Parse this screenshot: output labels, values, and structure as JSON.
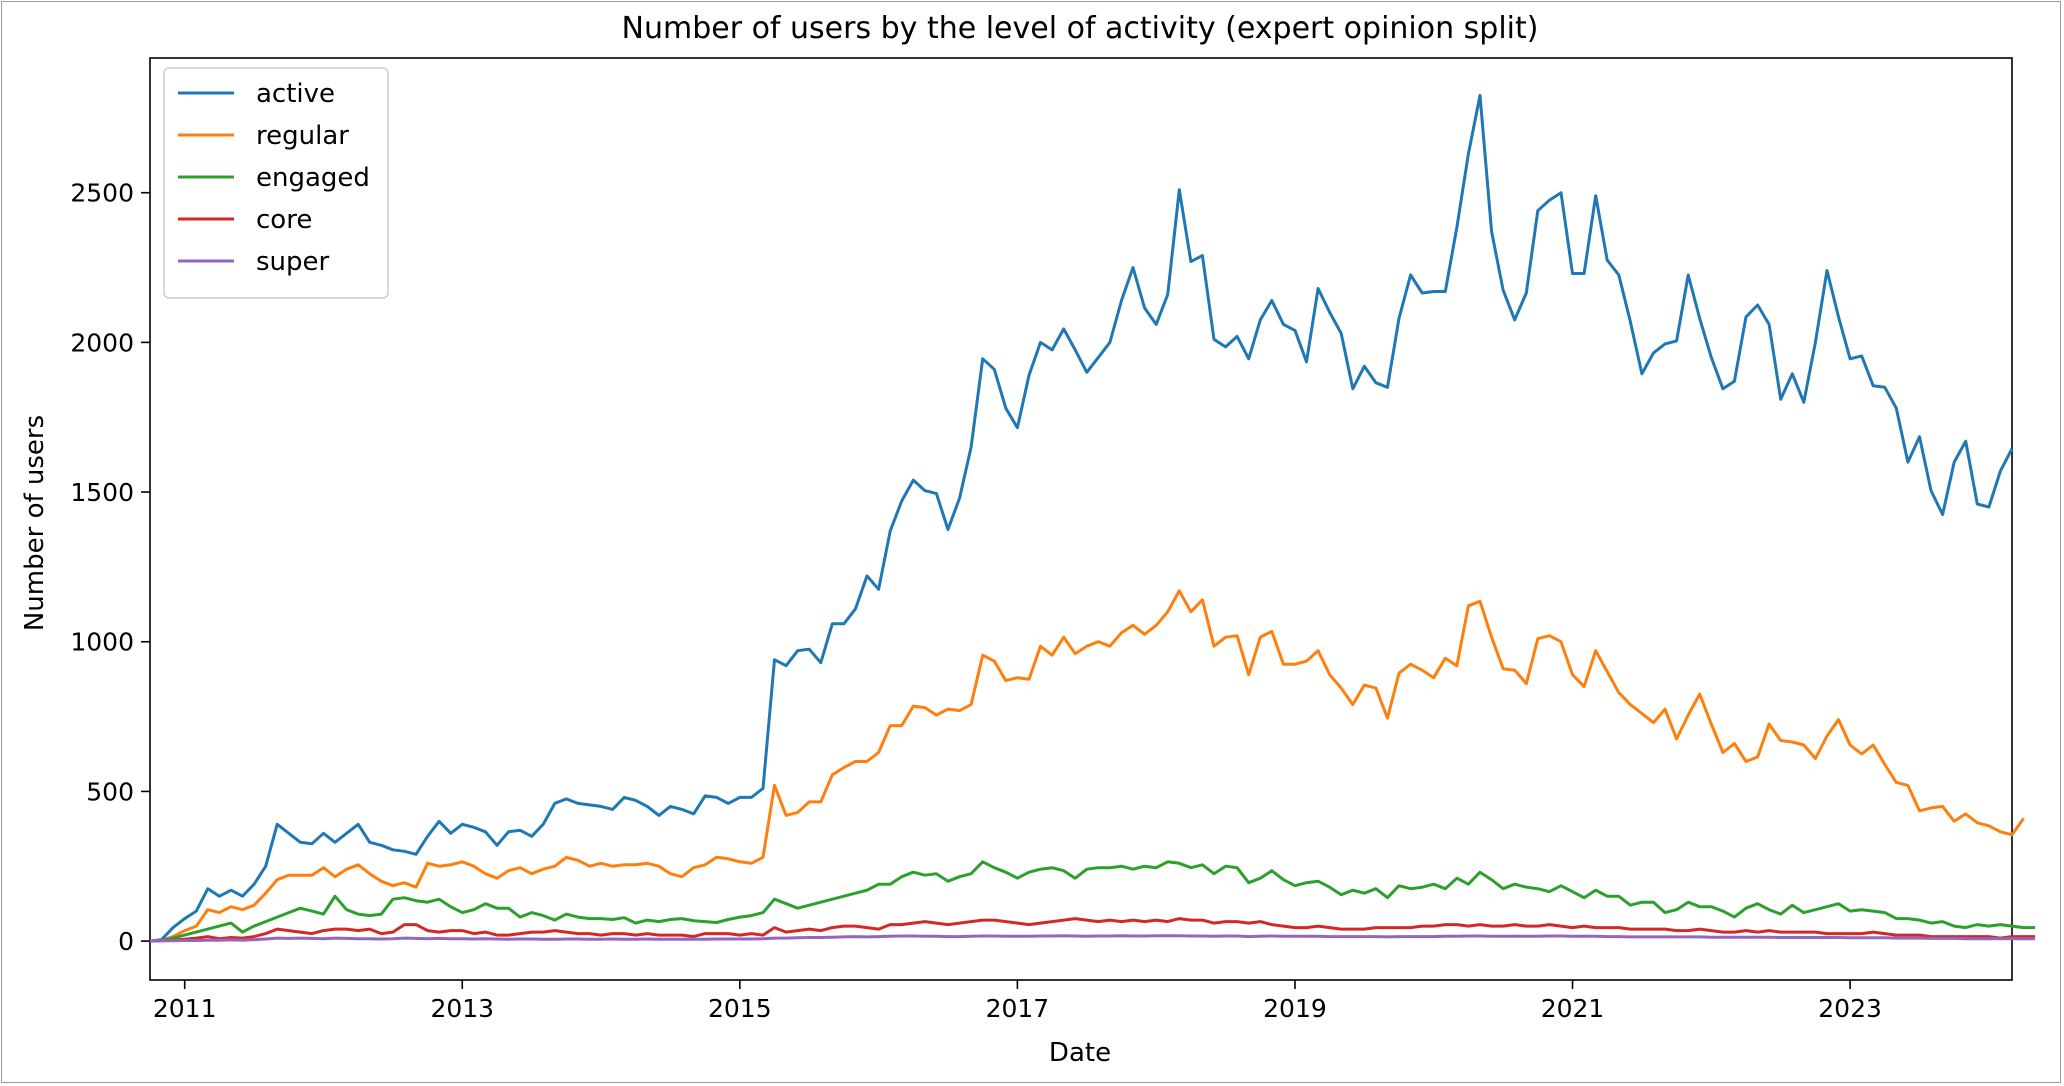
{
  "chart_data": {
    "type": "line",
    "title": "Number of users by the level of activity (expert opinion split)",
    "xlabel": "Date",
    "ylabel": "Number of users",
    "xlim": [
      "2010-10",
      "2024-03"
    ],
    "ylim": [
      -130,
      2950
    ],
    "x_ticks": [
      "2011",
      "2013",
      "2015",
      "2017",
      "2019",
      "2021",
      "2023"
    ],
    "y_ticks": [
      0,
      500,
      1000,
      1500,
      2000,
      2500
    ],
    "grid": false,
    "legend": "top-left",
    "x_start": "2010-10",
    "series": [
      {
        "name": "active",
        "color": "#1f77b4",
        "values": [
          0,
          5,
          45,
          75,
          100,
          175,
          150,
          170,
          150,
          190,
          250,
          390,
          360,
          330,
          325,
          360,
          330,
          360,
          390,
          330,
          320,
          305,
          300,
          290,
          350,
          400,
          360,
          390,
          380,
          365,
          320,
          365,
          370,
          350,
          390,
          460,
          475,
          460,
          455,
          450,
          440,
          480,
          470,
          450,
          420,
          450,
          440,
          425,
          485,
          480,
          460,
          480,
          480,
          510,
          940,
          920,
          970,
          975,
          930,
          1060,
          1060,
          1110,
          1220,
          1175,
          1370,
          1470,
          1540,
          1505,
          1495,
          1375,
          1480,
          1650,
          1945,
          1910,
          1780,
          1715,
          1890,
          2000,
          1975,
          2045,
          1975,
          1900,
          1950,
          2000,
          2140,
          2250,
          2115,
          2060,
          2160,
          2510,
          2270,
          2290,
          2010,
          1985,
          2020,
          1945,
          2075,
          2140,
          2060,
          2040,
          1935,
          2180,
          2100,
          2030,
          1845,
          1920,
          1865,
          1850,
          2080,
          2225,
          2165,
          2170,
          2170,
          2385,
          2630,
          2825,
          2370,
          2175,
          2075,
          2165,
          2440,
          2475,
          2500,
          2230,
          2230,
          2490,
          2275,
          2225,
          2070,
          1895,
          1965,
          1995,
          2005,
          2225,
          2080,
          1950,
          1845,
          1870,
          2085,
          2125,
          2060,
          1810,
          1895,
          1800,
          2000,
          2240,
          2085,
          1945,
          1955,
          1855,
          1850,
          1780,
          1600,
          1685,
          1505,
          1425,
          1600,
          1670,
          1460,
          1450,
          1570,
          1645
        ]
      },
      {
        "name": "regular",
        "color": "#ff7f0e",
        "values": [
          0,
          2,
          15,
          35,
          50,
          105,
          95,
          115,
          105,
          120,
          160,
          205,
          220,
          220,
          220,
          245,
          215,
          240,
          255,
          225,
          200,
          185,
          195,
          180,
          260,
          250,
          255,
          265,
          250,
          225,
          210,
          235,
          245,
          225,
          240,
          250,
          280,
          270,
          250,
          260,
          250,
          255,
          255,
          260,
          250,
          225,
          215,
          245,
          255,
          280,
          275,
          265,
          260,
          280,
          520,
          420,
          430,
          465,
          465,
          555,
          580,
          600,
          600,
          630,
          720,
          720,
          785,
          780,
          755,
          775,
          770,
          790,
          955,
          935,
          870,
          880,
          875,
          985,
          955,
          1015,
          960,
          985,
          1000,
          985,
          1030,
          1055,
          1025,
          1055,
          1100,
          1170,
          1100,
          1140,
          985,
          1015,
          1020,
          890,
          1015,
          1035,
          925,
          925,
          935,
          970,
          890,
          845,
          790,
          855,
          845,
          745,
          895,
          925,
          905,
          880,
          945,
          920,
          1120,
          1135,
          1015,
          910,
          905,
          860,
          1010,
          1020,
          1000,
          890,
          850,
          970,
          900,
          830,
          790,
          760,
          730,
          775,
          675,
          755,
          825,
          725,
          630,
          660,
          600,
          615,
          725,
          670,
          665,
          655,
          610,
          685,
          740,
          655,
          625,
          655,
          590,
          530,
          520,
          435,
          445,
          450,
          400,
          425,
          395,
          385,
          365,
          355,
          410
        ]
      },
      {
        "name": "engaged",
        "color": "#2ca02c",
        "values": [
          0,
          2,
          10,
          20,
          30,
          40,
          50,
          60,
          30,
          50,
          65,
          80,
          95,
          110,
          100,
          90,
          150,
          105,
          90,
          85,
          90,
          140,
          145,
          135,
          130,
          140,
          115,
          95,
          105,
          125,
          110,
          110,
          80,
          95,
          85,
          70,
          90,
          80,
          75,
          75,
          72,
          78,
          60,
          70,
          65,
          72,
          75,
          68,
          65,
          62,
          72,
          80,
          85,
          95,
          140,
          125,
          110,
          120,
          130,
          140,
          150,
          160,
          170,
          190,
          190,
          215,
          230,
          220,
          225,
          200,
          215,
          225,
          265,
          245,
          230,
          210,
          230,
          240,
          245,
          235,
          210,
          240,
          245,
          245,
          250,
          240,
          250,
          245,
          265,
          260,
          245,
          255,
          225,
          250,
          245,
          195,
          210,
          235,
          205,
          185,
          195,
          200,
          180,
          155,
          170,
          160,
          175,
          145,
          185,
          175,
          180,
          190,
          175,
          210,
          190,
          230,
          205,
          175,
          190,
          180,
          175,
          165,
          185,
          165,
          145,
          170,
          150,
          150,
          120,
          130,
          130,
          95,
          105,
          130,
          115,
          115,
          100,
          80,
          110,
          125,
          105,
          90,
          120,
          95,
          105,
          115,
          125,
          100,
          105,
          100,
          95,
          75,
          75,
          70,
          60,
          65,
          50,
          45,
          55,
          50,
          55,
          50,
          45,
          45
        ]
      },
      {
        "name": "core",
        "color": "#d62728",
        "values": [
          0,
          1,
          3,
          6,
          10,
          15,
          8,
          12,
          10,
          15,
          25,
          40,
          35,
          30,
          25,
          35,
          40,
          40,
          35,
          40,
          25,
          30,
          55,
          55,
          35,
          30,
          35,
          35,
          25,
          30,
          20,
          20,
          25,
          30,
          30,
          35,
          30,
          25,
          25,
          20,
          25,
          25,
          20,
          25,
          20,
          20,
          20,
          15,
          25,
          25,
          25,
          20,
          25,
          20,
          45,
          30,
          35,
          40,
          35,
          45,
          50,
          50,
          45,
          40,
          55,
          55,
          60,
          65,
          60,
          55,
          60,
          65,
          70,
          70,
          65,
          60,
          55,
          60,
          65,
          70,
          75,
          70,
          65,
          70,
          65,
          70,
          65,
          70,
          65,
          75,
          70,
          70,
          60,
          65,
          65,
          60,
          65,
          55,
          50,
          45,
          45,
          50,
          45,
          40,
          40,
          40,
          45,
          45,
          45,
          45,
          50,
          50,
          55,
          55,
          50,
          55,
          50,
          50,
          55,
          50,
          50,
          55,
          50,
          45,
          50,
          45,
          45,
          45,
          40,
          40,
          40,
          40,
          35,
          35,
          40,
          35,
          30,
          30,
          35,
          30,
          35,
          30,
          30,
          30,
          30,
          25,
          25,
          25,
          25,
          30,
          25,
          20,
          20,
          20,
          15,
          15,
          15,
          15,
          15,
          15,
          10,
          15,
          15,
          15
        ]
      },
      {
        "name": "super",
        "color": "#9467bd",
        "values": [
          0,
          1,
          1,
          2,
          2,
          3,
          3,
          4,
          3,
          5,
          7,
          10,
          9,
          10,
          9,
          8,
          10,
          9,
          8,
          8,
          7,
          8,
          10,
          9,
          8,
          9,
          8,
          8,
          7,
          8,
          7,
          6,
          7,
          7,
          6,
          6,
          7,
          7,
          6,
          6,
          7,
          6,
          6,
          7,
          6,
          6,
          6,
          6,
          6,
          7,
          7,
          7,
          7,
          8,
          10,
          10,
          11,
          12,
          12,
          13,
          14,
          15,
          14,
          15,
          16,
          17,
          17,
          16,
          16,
          15,
          15,
          16,
          17,
          17,
          16,
          16,
          16,
          17,
          17,
          18,
          17,
          16,
          17,
          17,
          18,
          17,
          17,
          18,
          18,
          18,
          17,
          17,
          16,
          17,
          17,
          15,
          16,
          17,
          16,
          16,
          16,
          16,
          15,
          15,
          15,
          15,
          15,
          14,
          15,
          15,
          15,
          15,
          16,
          16,
          17,
          17,
          16,
          16,
          16,
          16,
          16,
          17,
          17,
          16,
          16,
          16,
          15,
          15,
          14,
          14,
          14,
          14,
          14,
          14,
          14,
          13,
          13,
          13,
          13,
          13,
          13,
          12,
          12,
          12,
          12,
          12,
          12,
          11,
          11,
          11,
          11,
          10,
          10,
          10,
          9,
          9,
          9,
          8,
          8,
          8,
          8,
          8,
          8,
          8
        ]
      }
    ]
  }
}
